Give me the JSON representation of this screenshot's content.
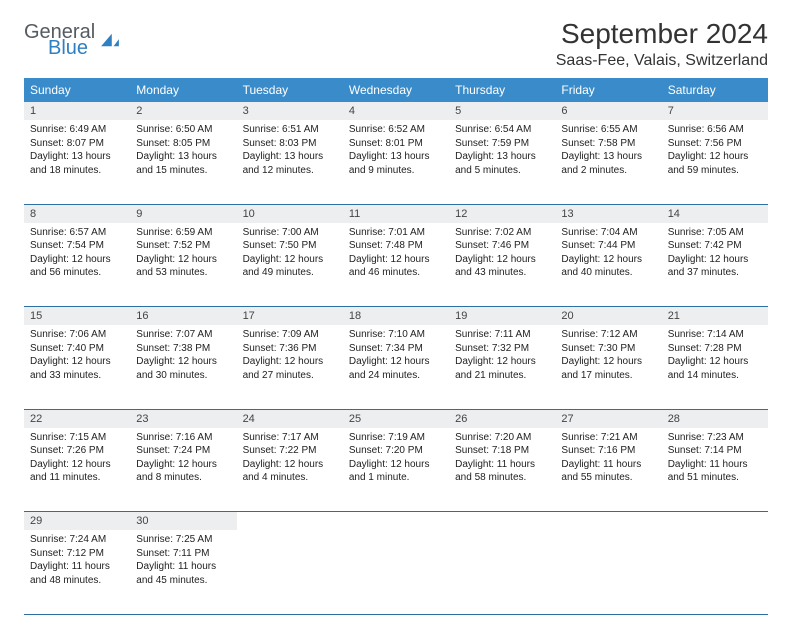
{
  "brand": {
    "name1": "General",
    "name2": "Blue"
  },
  "title": "September 2024",
  "location": "Saas-Fee, Valais, Switzerland",
  "header_bg": "#3a8bc9",
  "divider_color": "#2e6fa3",
  "daynum_bg": "#eceeef",
  "weekdays": [
    "Sunday",
    "Monday",
    "Tuesday",
    "Wednesday",
    "Thursday",
    "Friday",
    "Saturday"
  ],
  "weeks": [
    [
      {
        "n": "1",
        "sr": "Sunrise: 6:49 AM",
        "ss": "Sunset: 8:07 PM",
        "dl": "Daylight: 13 hours and 18 minutes."
      },
      {
        "n": "2",
        "sr": "Sunrise: 6:50 AM",
        "ss": "Sunset: 8:05 PM",
        "dl": "Daylight: 13 hours and 15 minutes."
      },
      {
        "n": "3",
        "sr": "Sunrise: 6:51 AM",
        "ss": "Sunset: 8:03 PM",
        "dl": "Daylight: 13 hours and 12 minutes."
      },
      {
        "n": "4",
        "sr": "Sunrise: 6:52 AM",
        "ss": "Sunset: 8:01 PM",
        "dl": "Daylight: 13 hours and 9 minutes."
      },
      {
        "n": "5",
        "sr": "Sunrise: 6:54 AM",
        "ss": "Sunset: 7:59 PM",
        "dl": "Daylight: 13 hours and 5 minutes."
      },
      {
        "n": "6",
        "sr": "Sunrise: 6:55 AM",
        "ss": "Sunset: 7:58 PM",
        "dl": "Daylight: 13 hours and 2 minutes."
      },
      {
        "n": "7",
        "sr": "Sunrise: 6:56 AM",
        "ss": "Sunset: 7:56 PM",
        "dl": "Daylight: 12 hours and 59 minutes."
      }
    ],
    [
      {
        "n": "8",
        "sr": "Sunrise: 6:57 AM",
        "ss": "Sunset: 7:54 PM",
        "dl": "Daylight: 12 hours and 56 minutes."
      },
      {
        "n": "9",
        "sr": "Sunrise: 6:59 AM",
        "ss": "Sunset: 7:52 PM",
        "dl": "Daylight: 12 hours and 53 minutes."
      },
      {
        "n": "10",
        "sr": "Sunrise: 7:00 AM",
        "ss": "Sunset: 7:50 PM",
        "dl": "Daylight: 12 hours and 49 minutes."
      },
      {
        "n": "11",
        "sr": "Sunrise: 7:01 AM",
        "ss": "Sunset: 7:48 PM",
        "dl": "Daylight: 12 hours and 46 minutes."
      },
      {
        "n": "12",
        "sr": "Sunrise: 7:02 AM",
        "ss": "Sunset: 7:46 PM",
        "dl": "Daylight: 12 hours and 43 minutes."
      },
      {
        "n": "13",
        "sr": "Sunrise: 7:04 AM",
        "ss": "Sunset: 7:44 PM",
        "dl": "Daylight: 12 hours and 40 minutes."
      },
      {
        "n": "14",
        "sr": "Sunrise: 7:05 AM",
        "ss": "Sunset: 7:42 PM",
        "dl": "Daylight: 12 hours and 37 minutes."
      }
    ],
    [
      {
        "n": "15",
        "sr": "Sunrise: 7:06 AM",
        "ss": "Sunset: 7:40 PM",
        "dl": "Daylight: 12 hours and 33 minutes."
      },
      {
        "n": "16",
        "sr": "Sunrise: 7:07 AM",
        "ss": "Sunset: 7:38 PM",
        "dl": "Daylight: 12 hours and 30 minutes."
      },
      {
        "n": "17",
        "sr": "Sunrise: 7:09 AM",
        "ss": "Sunset: 7:36 PM",
        "dl": "Daylight: 12 hours and 27 minutes."
      },
      {
        "n": "18",
        "sr": "Sunrise: 7:10 AM",
        "ss": "Sunset: 7:34 PM",
        "dl": "Daylight: 12 hours and 24 minutes."
      },
      {
        "n": "19",
        "sr": "Sunrise: 7:11 AM",
        "ss": "Sunset: 7:32 PM",
        "dl": "Daylight: 12 hours and 21 minutes."
      },
      {
        "n": "20",
        "sr": "Sunrise: 7:12 AM",
        "ss": "Sunset: 7:30 PM",
        "dl": "Daylight: 12 hours and 17 minutes."
      },
      {
        "n": "21",
        "sr": "Sunrise: 7:14 AM",
        "ss": "Sunset: 7:28 PM",
        "dl": "Daylight: 12 hours and 14 minutes."
      }
    ],
    [
      {
        "n": "22",
        "sr": "Sunrise: 7:15 AM",
        "ss": "Sunset: 7:26 PM",
        "dl": "Daylight: 12 hours and 11 minutes."
      },
      {
        "n": "23",
        "sr": "Sunrise: 7:16 AM",
        "ss": "Sunset: 7:24 PM",
        "dl": "Daylight: 12 hours and 8 minutes."
      },
      {
        "n": "24",
        "sr": "Sunrise: 7:17 AM",
        "ss": "Sunset: 7:22 PM",
        "dl": "Daylight: 12 hours and 4 minutes."
      },
      {
        "n": "25",
        "sr": "Sunrise: 7:19 AM",
        "ss": "Sunset: 7:20 PM",
        "dl": "Daylight: 12 hours and 1 minute."
      },
      {
        "n": "26",
        "sr": "Sunrise: 7:20 AM",
        "ss": "Sunset: 7:18 PM",
        "dl": "Daylight: 11 hours and 58 minutes."
      },
      {
        "n": "27",
        "sr": "Sunrise: 7:21 AM",
        "ss": "Sunset: 7:16 PM",
        "dl": "Daylight: 11 hours and 55 minutes."
      },
      {
        "n": "28",
        "sr": "Sunrise: 7:23 AM",
        "ss": "Sunset: 7:14 PM",
        "dl": "Daylight: 11 hours and 51 minutes."
      }
    ],
    [
      {
        "n": "29",
        "sr": "Sunrise: 7:24 AM",
        "ss": "Sunset: 7:12 PM",
        "dl": "Daylight: 11 hours and 48 minutes."
      },
      {
        "n": "30",
        "sr": "Sunrise: 7:25 AM",
        "ss": "Sunset: 7:11 PM",
        "dl": "Daylight: 11 hours and 45 minutes."
      },
      null,
      null,
      null,
      null,
      null
    ]
  ]
}
